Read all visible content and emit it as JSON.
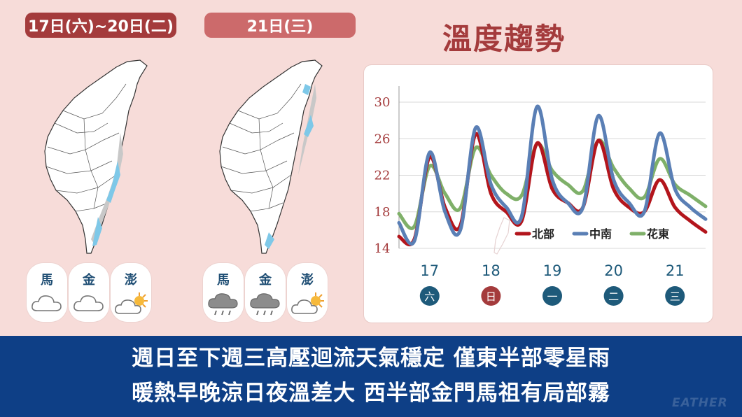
{
  "headers": {
    "range_label": "17日(六)~20日(二)",
    "single_label": "21日(三)",
    "title": "溫度趨勢"
  },
  "weather_cards": {
    "left": [
      {
        "label": "馬",
        "icon": "cloud-icon"
      },
      {
        "label": "金",
        "icon": "cloud-icon"
      },
      {
        "label": "澎",
        "icon": "partly-sunny-icon"
      }
    ],
    "right": [
      {
        "label": "馬",
        "icon": "rain-cloud-icon"
      },
      {
        "label": "金",
        "icon": "rain-cloud-icon"
      },
      {
        "label": "澎",
        "icon": "partly-sunny-icon"
      }
    ]
  },
  "banner": {
    "line1": "週日至下週三高壓迴流天氣穩定  僅東半部零星雨",
    "line2": "暖熱早晚涼日夜溫差大  西半部金門馬祖有局部霧",
    "watermark": "EATHER"
  },
  "colors": {
    "north": "#b3151c",
    "central_south": "#5a7fb5",
    "east": "#7fb069",
    "accent_red": "#a43b3c",
    "banner_blue": "#0e3f86",
    "day_blue": "#1e5a7a"
  },
  "chart_data": {
    "type": "line",
    "title": "溫度趨勢",
    "xlabel": "",
    "ylabel": "",
    "ylim": [
      14,
      31
    ],
    "yticks": [
      14,
      18,
      22,
      26,
      30
    ],
    "grid": true,
    "legend": "bottom-right",
    "days": [
      {
        "date": "17",
        "weekday": "六",
        "holiday": false
      },
      {
        "date": "18",
        "weekday": "日",
        "holiday": true
      },
      {
        "date": "19",
        "weekday": "一",
        "holiday": false
      },
      {
        "date": "20",
        "weekday": "二",
        "holiday": false
      },
      {
        "date": "21",
        "weekday": "三",
        "holiday": false
      }
    ],
    "x": [
      16.5,
      16.75,
      17.0,
      17.25,
      17.5,
      17.75,
      18.0,
      18.25,
      18.5,
      18.75,
      19.0,
      19.25,
      19.5,
      19.75,
      20.0,
      20.25,
      20.5,
      20.75,
      21.0,
      21.25,
      21.5
    ],
    "series": [
      {
        "name": "北部",
        "values": [
          15.3,
          15.0,
          24.0,
          18.5,
          16.5,
          26.5,
          20.0,
          18.0,
          17.0,
          25.5,
          20.5,
          19.0,
          18.5,
          25.8,
          20.5,
          18.5,
          18.0,
          21.5,
          18.5,
          17.0,
          15.8
        ]
      },
      {
        "name": "中南",
        "values": [
          16.8,
          14.8,
          24.5,
          18.0,
          16.0,
          27.2,
          21.0,
          18.5,
          17.5,
          29.5,
          21.5,
          19.0,
          18.5,
          28.5,
          21.5,
          19.0,
          18.0,
          26.6,
          20.5,
          18.5,
          17.2
        ]
      },
      {
        "name": "花東",
        "values": [
          17.8,
          16.4,
          23.0,
          20.0,
          18.4,
          25.0,
          22.0,
          20.0,
          19.8,
          25.4,
          22.5,
          21.0,
          20.3,
          25.8,
          22.8,
          20.6,
          19.6,
          23.8,
          21.0,
          19.8,
          18.6
        ]
      }
    ]
  }
}
